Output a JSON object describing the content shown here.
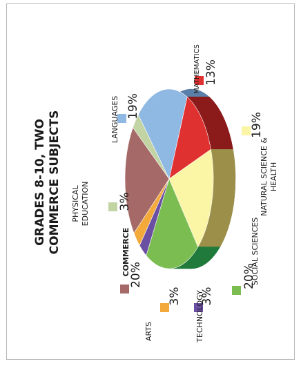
{
  "chart_data": {
    "type": "pie",
    "title_lines": [
      "GRADES 8-10, TWO",
      "COMMERCE SUBJECTS"
    ],
    "slices": [
      {
        "name": "MATHEMATICS",
        "name_lines": [
          "MATHEMATICS"
        ],
        "value": 13,
        "label": "13%",
        "color": "#e03131",
        "side": "#8b1a1a"
      },
      {
        "name": "NATURAL SCIENCE & HEALTH",
        "name_lines": [
          "NATURAL SCIENCE &",
          "HEALTH"
        ],
        "value": 19,
        "label": "19%",
        "color": "#fbf5a6",
        "side": "#9b8f4a"
      },
      {
        "name": "SOCIAL SCIENCES",
        "name_lines": [
          "SOCIAL SCIENCES"
        ],
        "value": 20,
        "label": "20%",
        "color": "#7cbd52",
        "side": "#207a3c"
      },
      {
        "name": "TECHNOLOGY",
        "name_lines": [
          "TECHNOLOGY"
        ],
        "value": 3,
        "label": "3%",
        "color": "#6b4fa3",
        "side": "#4a3478"
      },
      {
        "name": "ARTS",
        "name_lines": [
          "ARTS"
        ],
        "value": 3,
        "label": "3%",
        "color": "#f4a93b",
        "side": "#b87a22"
      },
      {
        "name": "COMMERCE",
        "name_lines": [
          "COMMERCE"
        ],
        "value": 20,
        "label": "20%",
        "color": "#a56a67",
        "side": "#6e4442"
      },
      {
        "name": "PHYSICAL EDUCATION",
        "name_lines": [
          "PHYSICAL",
          "EDUCATION"
        ],
        "value": 3,
        "label": "3%",
        "color": "#c2d3a4",
        "side": "#8a9a6e"
      },
      {
        "name": "LANGUAGES",
        "name_lines": [
          "LANGUAGES"
        ],
        "value": 19,
        "label": "19%",
        "color": "#8fb8e3",
        "side": "#5a7fa8"
      }
    ]
  }
}
